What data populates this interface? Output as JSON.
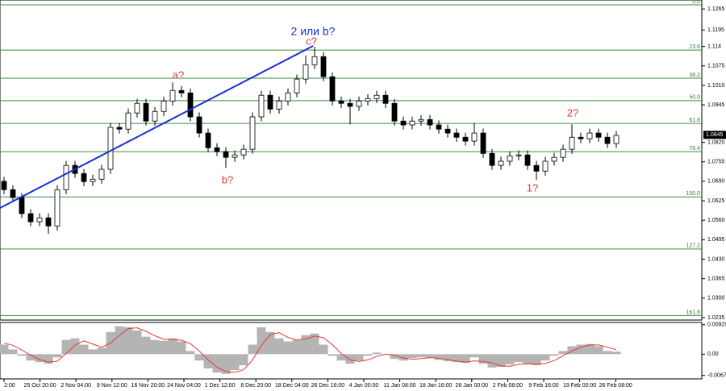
{
  "chart_data": [
    {
      "type": "candlestick",
      "open": [
        1.069,
        1.0662,
        1.0636,
        1.0582,
        1.0555,
        1.0568,
        1.0541,
        1.0662,
        1.0743,
        1.0716,
        1.0689,
        1.0697,
        1.073,
        1.087,
        1.0864,
        1.0918,
        1.095,
        1.0891,
        1.0923,
        1.0958,
        1.0993,
        1.0985,
        1.0905,
        1.0851,
        1.0802,
        1.0789,
        1.077,
        1.0778,
        1.0797,
        1.0905,
        1.0977,
        1.0931,
        1.0958,
        1.0985,
        1.1031,
        1.1079,
        1.1106,
        1.1039,
        1.0958,
        1.095,
        1.094,
        1.0958,
        1.0966,
        1.0977,
        1.095,
        1.0891,
        1.0878,
        1.0891,
        1.0896,
        1.0878,
        1.0864,
        1.0851,
        1.0837,
        1.0824,
        1.0851,
        1.0783,
        1.0743,
        1.0757,
        1.0775,
        1.0778,
        1.0743,
        1.0724,
        1.0757,
        1.077,
        1.0797,
        1.0837,
        1.0832,
        1.0851,
        1.0837,
        1.0816
      ],
      "high": [
        1.0705,
        1.0677,
        1.0651,
        1.0597,
        1.0583,
        1.0583,
        1.0677,
        1.0758,
        1.0758,
        1.0731,
        1.0712,
        1.0745,
        1.0885,
        1.0885,
        1.0933,
        1.0965,
        1.0965,
        1.0938,
        1.0973,
        1.102,
        1.1008,
        1.1,
        1.092,
        1.0866,
        1.0817,
        1.0804,
        1.0793,
        1.0812,
        1.092,
        1.0992,
        1.0992,
        1.0973,
        1.1,
        1.1046,
        1.111,
        1.1139,
        1.1121,
        1.1054,
        1.0973,
        1.0965,
        1.0973,
        1.0981,
        1.0992,
        1.0992,
        1.0965,
        1.0906,
        1.0906,
        1.0911,
        1.0911,
        1.0893,
        1.0879,
        1.0866,
        1.0852,
        1.0885,
        1.0866,
        1.0798,
        1.0772,
        1.079,
        1.0793,
        1.0793,
        1.0758,
        1.0772,
        1.0785,
        1.0812,
        1.088,
        1.0852,
        1.0866,
        1.0866,
        1.0852,
        1.0858
      ],
      "low": [
        1.0647,
        1.0621,
        1.0567,
        1.054,
        1.054,
        1.0515,
        1.0526,
        1.0647,
        1.0701,
        1.0674,
        1.0674,
        1.0682,
        1.0715,
        1.0849,
        1.0849,
        1.0903,
        1.0876,
        1.0876,
        1.0908,
        1.0943,
        1.097,
        1.089,
        1.0836,
        1.0787,
        1.0774,
        1.0735,
        1.0755,
        1.0763,
        1.0782,
        1.089,
        1.0916,
        1.0916,
        1.0943,
        1.097,
        1.1016,
        1.1064,
        1.1024,
        1.0943,
        1.0935,
        1.088,
        1.0925,
        1.0943,
        1.0951,
        1.0935,
        1.0876,
        1.0863,
        1.0863,
        1.0876,
        1.0863,
        1.0849,
        1.0836,
        1.0822,
        1.0809,
        1.0809,
        1.0768,
        1.0728,
        1.0728,
        1.0742,
        1.076,
        1.0728,
        1.0695,
        1.0709,
        1.0742,
        1.0755,
        1.0782,
        1.0817,
        1.0817,
        1.0822,
        1.0801,
        1.0801
      ],
      "close": [
        1.0662,
        1.0636,
        1.0582,
        1.0555,
        1.0568,
        1.0541,
        1.0662,
        1.0743,
        1.0716,
        1.0689,
        1.0697,
        1.073,
        1.087,
        1.0864,
        1.0918,
        1.095,
        1.0891,
        1.0923,
        1.0958,
        1.0993,
        1.0985,
        1.0905,
        1.0851,
        1.0802,
        1.0789,
        1.077,
        1.0778,
        1.0797,
        1.0905,
        1.0977,
        1.0931,
        1.0958,
        1.0985,
        1.1031,
        1.1079,
        1.1106,
        1.1039,
        1.0958,
        1.095,
        1.094,
        1.0958,
        1.0966,
        1.0977,
        1.095,
        1.0891,
        1.0878,
        1.0891,
        1.0896,
        1.0878,
        1.0864,
        1.0851,
        1.0837,
        1.0824,
        1.0851,
        1.0783,
        1.0743,
        1.0757,
        1.0775,
        1.0778,
        1.0743,
        1.0724,
        1.0757,
        1.077,
        1.0797,
        1.0837,
        1.0832,
        1.0851,
        1.0837,
        1.0816,
        1.0843
      ],
      "ylim": [
        1.0227,
        1.1295
      ],
      "yticks": [
        1.1265,
        1.1195,
        1.114,
        1.1075,
        {
          "value": 1.101,
          "label": "1.1010"
        },
        1.0945,
        1.0755,
        {
          "value": 1.069,
          "label": "1.0690"
        },
        1.0625,
        {
          "value": 1.056,
          "label": "1.0560"
        },
        1.0495,
        {
          "value": 1.043,
          "label": "1.0430"
        },
        1.0365,
        {
          "value": 1.03,
          "label": "1.0300"
        },
        1.0235,
        {
          "value": 1.082,
          "label": "1.0820"
        }
      ],
      "current_price": 1.0845,
      "fib_levels": [
        {
          "label": "0.0",
          "price": 1.1279
        },
        {
          "label": "23.6",
          "price": 1.1128
        },
        {
          "label": "38.2",
          "price": 1.1034
        },
        {
          "label": "50.0",
          "price": 1.0959
        },
        {
          "label": "61.8",
          "price": 1.0883
        },
        {
          "label": "76.4",
          "price": 1.0789
        },
        {
          "label": "100.0",
          "price": 1.0638
        },
        {
          "label": "127.2",
          "price": 1.0464
        },
        {
          "label": "161.8",
          "price": 1.0242
        }
      ],
      "fib_color": "#3a8f3a",
      "x_labels": [
        "2:00",
        "25 Oct 20:00",
        "2 Nov 04:00",
        "9 Nov 12:00",
        "16 Nov 20:00",
        "24 Nov 04:00",
        "1 Dec 12:00",
        "8 Dec 20:00",
        "18 Dec 04:00",
        "26 Dec 16:00",
        "4 Jan 00:00",
        "11 Jan 08:00",
        "18 Jan 16:00",
        "26 Jan 00:00",
        "2 Feb 08:00",
        "9 Feb 16:00",
        "19 Feb 00:00",
        "26 Feb 08:00"
      ],
      "annotations": [
        "2 или b?",
        "c?",
        "a?",
        "b?",
        "2?",
        "1?"
      ]
    },
    {
      "type": "macd",
      "histogram": [
        0.003,
        0.0015,
        -0.0005,
        -0.002,
        -0.0025,
        -0.003,
        -0.001,
        0.0045,
        0.005,
        0.003,
        0.0015,
        0.002,
        0.007,
        0.0088,
        0.0085,
        0.0075,
        0.0055,
        0.0045,
        0.0042,
        0.005,
        0.004,
        0.001,
        -0.002,
        -0.0045,
        -0.0058,
        -0.0062,
        -0.005,
        -0.0035,
        0.003,
        0.0085,
        0.007,
        0.005,
        0.004,
        0.0045,
        0.006,
        0.0065,
        0.003,
        -0.0005,
        -0.002,
        -0.003,
        -0.002,
        -0.0005,
        0.0005,
        0.0,
        -0.0015,
        -0.002,
        -0.0012,
        -0.001,
        -0.0012,
        -0.0018,
        -0.0022,
        -0.0025,
        -0.0028,
        -0.001,
        -0.003,
        -0.0042,
        -0.004,
        -0.0032,
        -0.0025,
        -0.0032,
        -0.0035,
        -0.002,
        -0.0005,
        0.001,
        0.0025,
        0.003,
        0.0032,
        0.0025,
        0.001,
        0.0008
      ],
      "signal": [
        0.0035,
        0.0028,
        0.0013,
        -0.0003,
        -0.0017,
        -0.0025,
        -0.0022,
        0.0002,
        0.0028,
        0.0042,
        0.0032,
        0.0022,
        0.0035,
        0.0059,
        0.0081,
        0.0083,
        0.0072,
        0.0058,
        0.0047,
        0.0046,
        0.0044,
        0.0033,
        0.001,
        -0.0018,
        -0.0041,
        -0.0055,
        -0.0057,
        -0.0049,
        -0.0018,
        0.0027,
        0.0062,
        0.0068,
        0.0053,
        0.0045,
        0.0048,
        0.0057,
        0.0052,
        0.003,
        0.0002,
        -0.0018,
        -0.0023,
        -0.0018,
        -0.0007,
        0.0,
        -0.0003,
        -0.0012,
        -0.0016,
        -0.0014,
        -0.0011,
        -0.0013,
        -0.0017,
        -0.0022,
        -0.0025,
        -0.0021,
        -0.0023,
        -0.0027,
        -0.0037,
        -0.0038,
        -0.0032,
        -0.003,
        -0.0031,
        -0.0029,
        -0.002,
        -0.0005,
        0.001,
        0.0022,
        0.0029,
        0.0029,
        0.0022,
        0.0014
      ],
      "histogram_color": "#b4b4b4",
      "signal_color": "#e53935",
      "ylim": [
        -0.0078,
        0.01
      ],
      "yticks": [
        0.00929,
        {
          "value": 0,
          "label": "0.00"
        },
        -0.0067
      ]
    }
  ]
}
